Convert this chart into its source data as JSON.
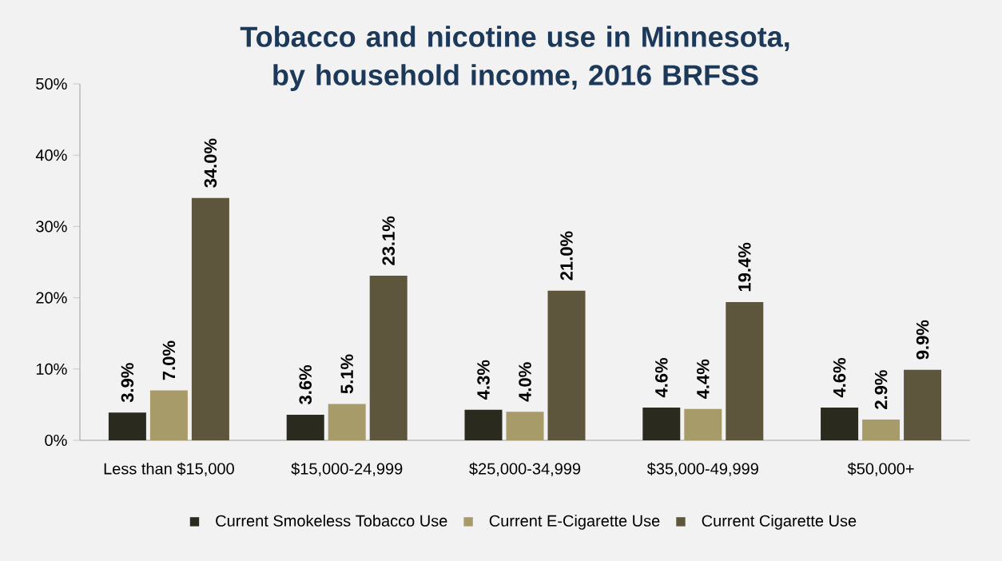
{
  "chart_data": {
    "type": "bar",
    "title": "Tobacco and nicotine use in Minnesota, by household income, 2016 BRFSS",
    "categories": [
      "Less than $15,000",
      "$15,000-24,999",
      "$25,000-34,999",
      "$35,000-49,999",
      "$50,000+"
    ],
    "series": [
      {
        "name": "Current Smokeless Tobacco Use",
        "color": "#2b2a1f",
        "values": [
          3.9,
          3.6,
          4.3,
          4.6,
          4.6
        ],
        "value_labels": [
          "3.9%",
          "3.6%",
          "4.3%",
          "4.6%",
          "4.6%"
        ]
      },
      {
        "name": "Current E-Cigarette Use",
        "color": "#a89b6a",
        "values": [
          7.0,
          5.1,
          4.0,
          4.4,
          2.9
        ],
        "value_labels": [
          "7.0%",
          "5.1%",
          "4.0%",
          "4.4%",
          "2.9%"
        ]
      },
      {
        "name": "Current Cigarette Use",
        "color": "#5e553d",
        "values": [
          34.0,
          23.1,
          21.0,
          19.4,
          9.9
        ],
        "value_labels": [
          "34.0%",
          "23.1%",
          "21.0%",
          "19.4%",
          "9.9%"
        ]
      }
    ],
    "ylim": [
      0,
      50
    ],
    "yticks": [
      {
        "value": 0,
        "label": "0%"
      },
      {
        "value": 10,
        "label": "10%"
      },
      {
        "value": 20,
        "label": "20%"
      },
      {
        "value": 30,
        "label": "30%"
      },
      {
        "value": 40,
        "label": "40%"
      },
      {
        "value": 50,
        "label": "50%"
      }
    ],
    "grid": false,
    "legend": "bottom"
  }
}
